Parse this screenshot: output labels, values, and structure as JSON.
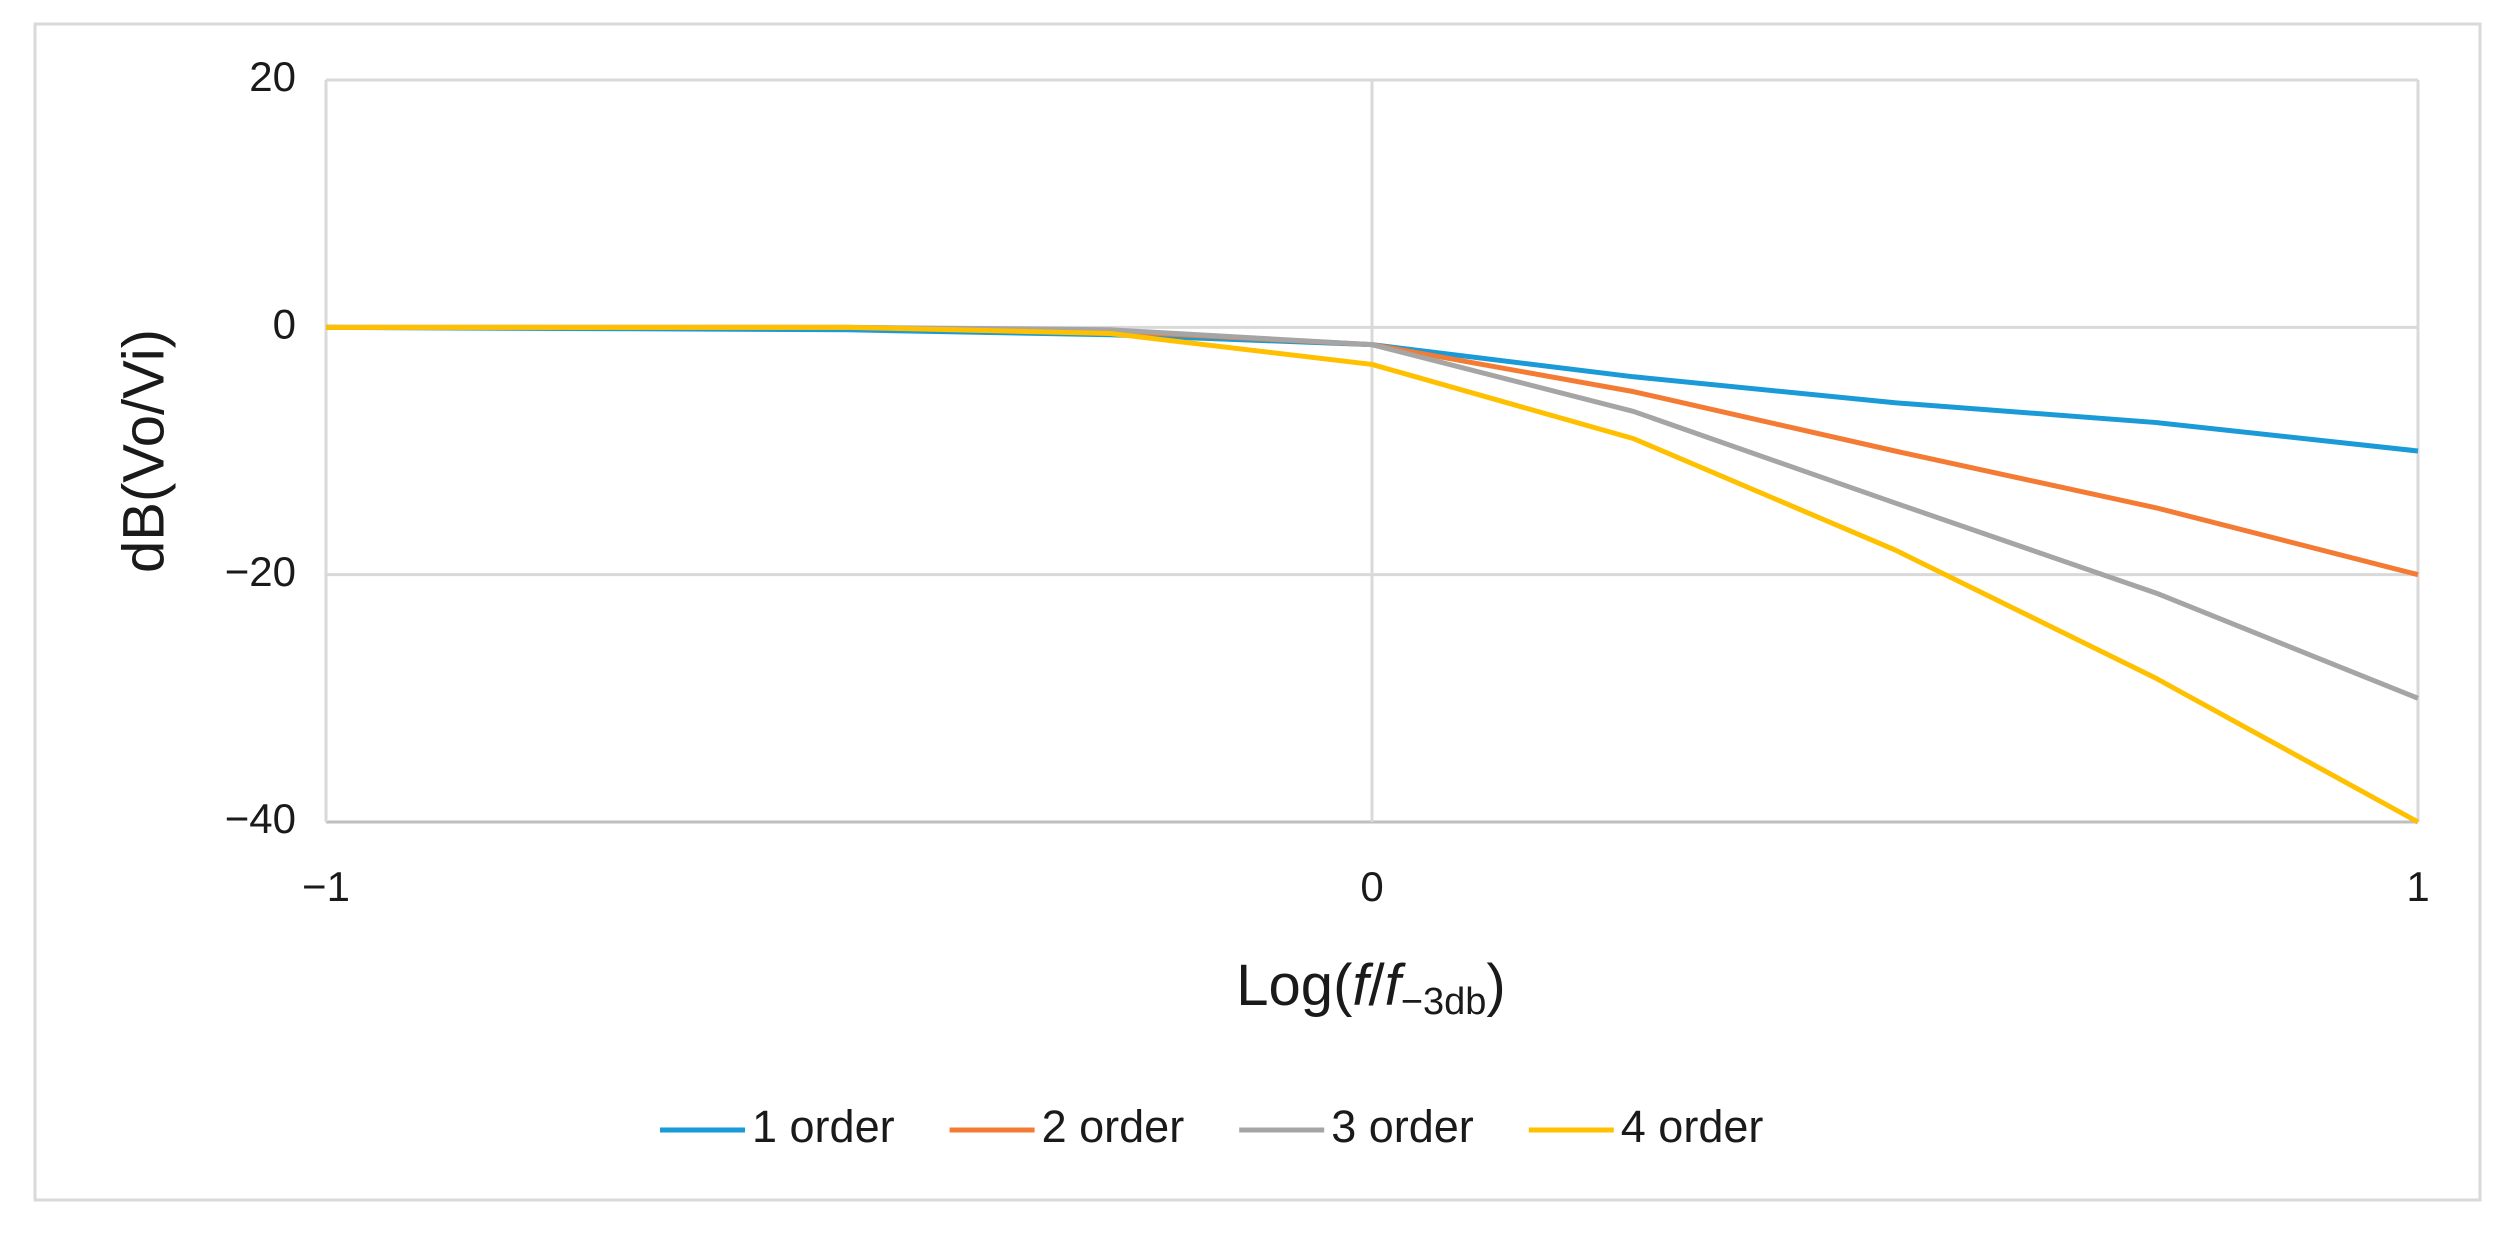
{
  "chart_data": {
    "type": "line",
    "y_label": "dB(Vo/Vi)",
    "x_label": [
      "Log(",
      "f",
      "/",
      "f",
      "−3db",
      ")"
    ],
    "x": [
      -1,
      -0.75,
      -0.5,
      -0.25,
      0,
      0.25,
      0.5,
      0.75,
      1
    ],
    "series": [
      {
        "name": "1 order",
        "color": "#1a9ad6",
        "values": [
          0,
          -0.1,
          -0.2,
          -0.6,
          -1.4,
          -4.0,
          -6.1,
          -7.7,
          -10
        ]
      },
      {
        "name": "2 order",
        "color": "#f47b34",
        "values": [
          0,
          0,
          0,
          -0.3,
          -1.4,
          -5.2,
          -10,
          -14.6,
          -20
        ]
      },
      {
        "name": "3 order",
        "color": "#a5a5a5",
        "values": [
          0,
          0,
          0,
          -0.2,
          -1.4,
          -6.8,
          -14.2,
          -21.5,
          -30
        ]
      },
      {
        "name": "4 order",
        "color": "#ffc000",
        "values": [
          0,
          0,
          0,
          -0.5,
          -3,
          -9,
          -18,
          -28.4,
          -40
        ]
      }
    ],
    "xlim": [
      -1,
      1
    ],
    "xticks": [
      {
        "value": -1,
        "label": "−1"
      },
      0,
      1
    ],
    "ylim": [
      -40,
      20
    ],
    "yticks": [
      {
        "value": -40,
        "label": "−40"
      },
      {
        "value": -20,
        "label": "−20"
      },
      0,
      20
    ],
    "grid": true,
    "legend": "bottom"
  }
}
